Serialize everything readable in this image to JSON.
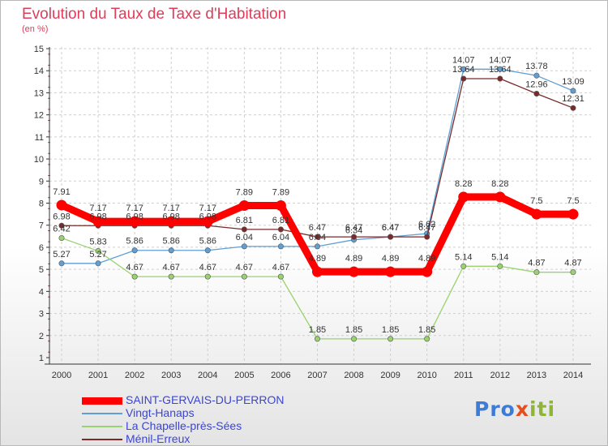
{
  "chart_data": {
    "type": "line",
    "title": "Evolution du Taux de Taxe d'Habitation",
    "ylabel": "(en %)",
    "xlabel": "",
    "ylim": [
      1,
      15
    ],
    "yticks": [
      "1",
      "2",
      "3",
      "4",
      "5",
      "6",
      "7",
      "8",
      "9",
      "10",
      "11",
      "12",
      "13",
      "14",
      "15"
    ],
    "categories": [
      "2000",
      "2001",
      "2002",
      "2003",
      "2004",
      "2005",
      "2006",
      "2007",
      "2008",
      "2009",
      "2010",
      "2011",
      "2012",
      "2013",
      "2014"
    ],
    "series": [
      {
        "name": "SAINT-GERVAIS-DU-PERRON",
        "color": "#ff0000",
        "values": [
          7.91,
          7.17,
          7.17,
          7.17,
          7.17,
          7.89,
          7.89,
          4.89,
          4.89,
          4.89,
          4.89,
          8.28,
          8.28,
          7.5,
          7.5
        ],
        "labels": [
          "7.91",
          "7.17",
          "7.17",
          "7.17",
          "7.17",
          "7.89",
          "7.89",
          "4.89",
          "4.89",
          "4.89",
          "4.89",
          "8.28",
          "8.28",
          "7.5",
          "7.5"
        ]
      },
      {
        "name": "Vingt-Hanaps",
        "color": "#5f9fd4",
        "values": [
          5.27,
          5.27,
          5.86,
          5.86,
          5.86,
          6.04,
          6.04,
          6.04,
          6.34,
          6.47,
          6.62,
          14.07,
          14.07,
          13.78,
          13.09
        ],
        "labels": [
          "5.27",
          "5.27",
          "5.86",
          "5.86",
          "5.86",
          "6.04",
          "6.04",
          "6.04",
          "6.34",
          "6.47",
          "6.62",
          "14.07",
          "14.07",
          "13.78",
          "13.09"
        ]
      },
      {
        "name": "La Chapelle-près-Sées",
        "color": "#98d36e",
        "values": [
          6.42,
          5.83,
          4.67,
          4.67,
          4.67,
          4.67,
          4.67,
          1.85,
          1.85,
          1.85,
          1.85,
          5.14,
          5.14,
          4.87,
          4.87
        ],
        "labels": [
          "6.42",
          "5.83",
          "4.67",
          "4.67",
          "4.67",
          "4.67",
          "4.67",
          "1.85",
          "1.85",
          "1.85",
          "1.85",
          "5.14",
          "5.14",
          "4.87",
          "4.87"
        ]
      },
      {
        "name": "Ménil-Erreux",
        "color": "#7a2a2a",
        "values": [
          6.98,
          6.98,
          6.98,
          6.98,
          6.98,
          6.81,
          6.81,
          6.47,
          6.47,
          6.47,
          6.47,
          13.64,
          13.64,
          12.96,
          12.31
        ],
        "labels": [
          "6.98",
          "6.98",
          "6.98",
          "6.98",
          "6.98",
          "6.81",
          "6.81",
          "6.47",
          "6.47",
          "6.47",
          "6.47",
          "13.64",
          "13.64",
          "12.96",
          "12.31"
        ]
      }
    ]
  },
  "logo": {
    "part1": "Pro",
    "part2": "x",
    "part3": "iti"
  }
}
